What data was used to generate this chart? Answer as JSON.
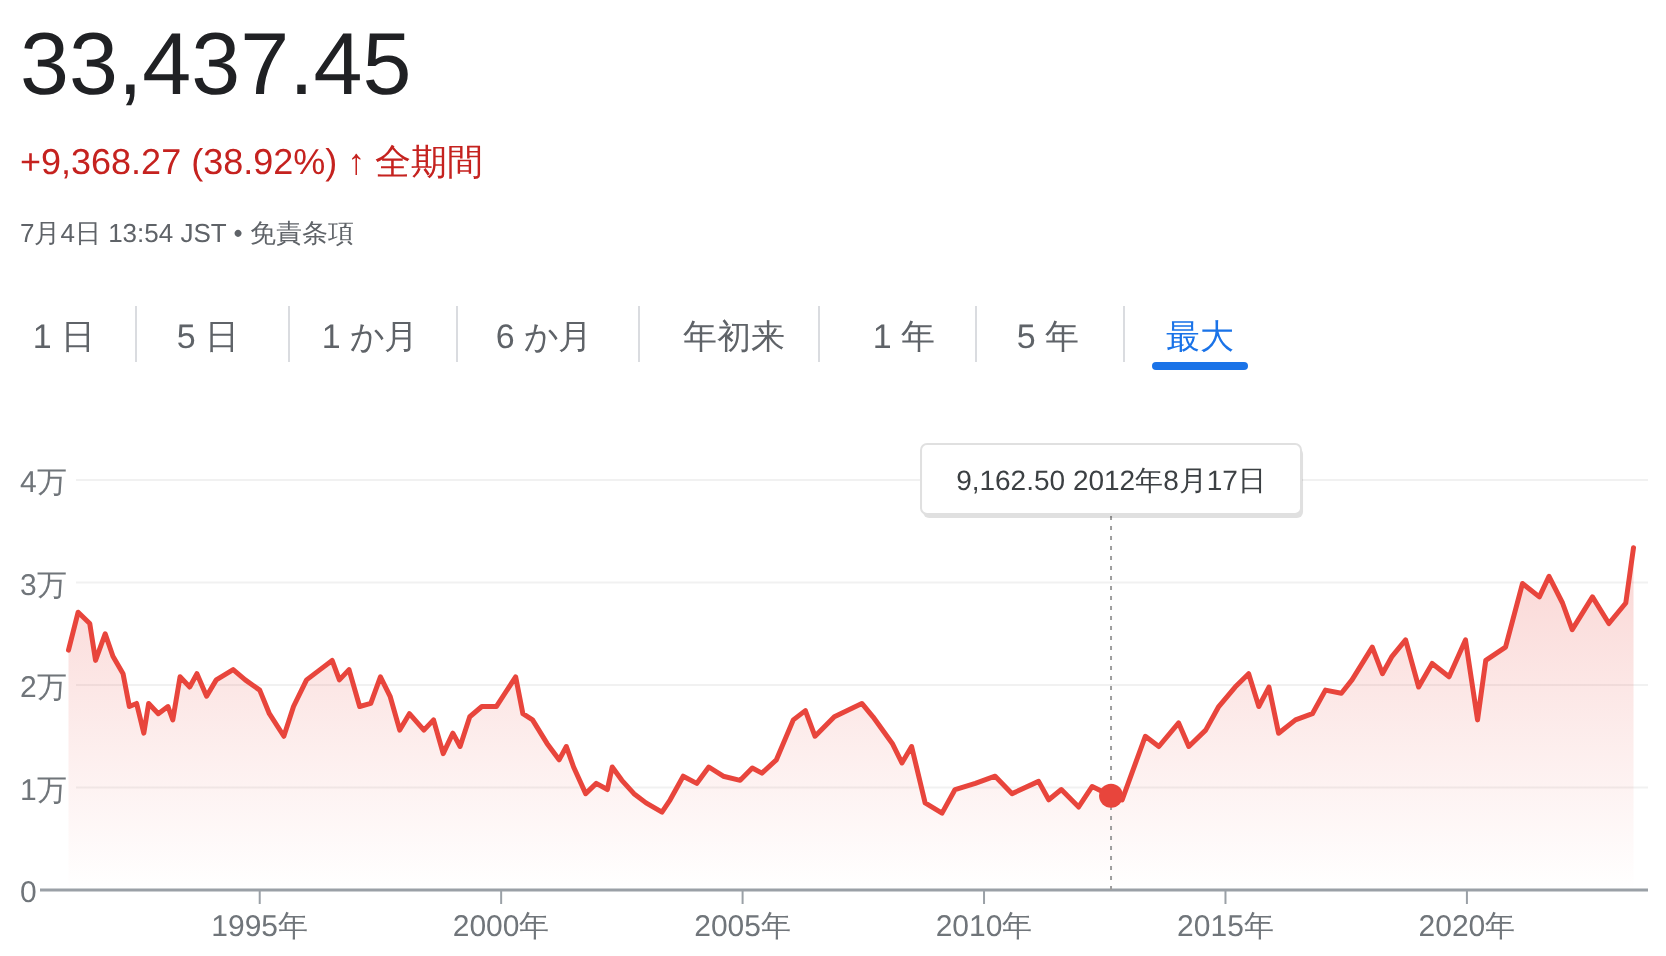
{
  "chart_data": {
    "type": "area",
    "title": "33,437.45",
    "subtitle": "+9,368.27 (38.92%) ↑ 全期間",
    "annotations": [
      "7月4日 13:54 JST • 免責条項",
      "1 日",
      "5 日",
      "1 か月",
      "6 か月",
      "年初来",
      "1 年",
      "5 年",
      "最大",
      "9,162.50  2012年8月17日"
    ],
    "xlim": [
      1990.45,
      2023.75
    ],
    "ylim": [
      0,
      4
    ],
    "xticks": [
      {
        "value": 1995,
        "label": "1995年"
      },
      {
        "value": 2000,
        "label": "2000年"
      },
      {
        "value": 2005,
        "label": "2005年"
      },
      {
        "value": 2010,
        "label": "2010年"
      },
      {
        "value": 2015,
        "label": "2015年"
      },
      {
        "value": 2020,
        "label": "2020年"
      }
    ],
    "yticks": [
      0,
      {
        "value": 1,
        "label": "1万"
      },
      {
        "value": 2,
        "label": "2万"
      },
      {
        "value": 3,
        "label": "3万"
      },
      {
        "value": 4,
        "label": "4万"
      }
    ],
    "grid": "y",
    "ref_lines": [
      {
        "axis": "x",
        "value": 2012.63,
        "color": "#9e9e9e",
        "line_style": "dotted"
      }
    ],
    "series": [
      {
        "color": "#e8453c",
        "x": [
          1991.04,
          1991.24,
          1991.48,
          1991.6,
          1991.8,
          1991.96,
          1992.17,
          1992.3,
          1992.45,
          1992.6,
          1992.7,
          1992.9,
          1993.1,
          1993.2,
          1993.35,
          1993.55,
          1993.7,
          1993.9,
          1994.1,
          1994.45,
          1994.7,
          1995.0,
          1995.2,
          1995.5,
          1995.7,
          1995.97,
          1996.25,
          1996.5,
          1996.65,
          1996.85,
          1997.07,
          1997.3,
          1997.5,
          1997.7,
          1997.9,
          1998.1,
          1998.4,
          1998.6,
          1998.8,
          1999.0,
          1999.15,
          1999.35,
          1999.6,
          1999.9,
          2000.3,
          2000.45,
          2000.65,
          2000.95,
          2001.2,
          2001.35,
          2001.5,
          2001.75,
          2001.97,
          2002.2,
          2002.3,
          2002.5,
          2002.75,
          2003.0,
          2003.33,
          2003.5,
          2003.77,
          2004.05,
          2004.3,
          2004.6,
          2004.95,
          2005.2,
          2005.4,
          2005.7,
          2006.05,
          2006.3,
          2006.5,
          2006.9,
          2007.47,
          2007.7,
          2008.1,
          2008.3,
          2008.5,
          2008.78,
          2009.13,
          2009.4,
          2009.82,
          2010.23,
          2010.58,
          2011.13,
          2011.34,
          2011.6,
          2011.96,
          2012.24,
          2012.63,
          2012.86,
          2013.34,
          2013.62,
          2014.03,
          2014.24,
          2014.59,
          2014.86,
          2015.2,
          2015.48,
          2015.69,
          2015.9,
          2016.1,
          2016.45,
          2016.8,
          2017.07,
          2017.4,
          2017.62,
          2018.04,
          2018.25,
          2018.45,
          2018.73,
          2019.0,
          2019.28,
          2019.63,
          2019.97,
          2020.22,
          2020.39,
          2020.8,
          2021.15,
          2021.5,
          2021.7,
          2021.98,
          2022.18,
          2022.6,
          2022.94,
          2023.29,
          2023.45
        ],
        "values": [
          2.34,
          2.71,
          2.6,
          2.24,
          2.5,
          2.28,
          2.11,
          1.79,
          1.82,
          1.53,
          1.82,
          1.72,
          1.79,
          1.66,
          2.08,
          1.98,
          2.11,
          1.89,
          2.05,
          2.15,
          2.05,
          1.95,
          1.72,
          1.5,
          1.79,
          2.05,
          2.15,
          2.24,
          2.05,
          2.15,
          1.79,
          1.82,
          2.08,
          1.89,
          1.56,
          1.72,
          1.56,
          1.66,
          1.33,
          1.53,
          1.4,
          1.69,
          1.79,
          1.79,
          2.08,
          1.72,
          1.66,
          1.43,
          1.27,
          1.4,
          1.2,
          0.94,
          1.04,
          0.98,
          1.2,
          1.07,
          0.94,
          0.85,
          0.76,
          0.88,
          1.11,
          1.04,
          1.2,
          1.11,
          1.07,
          1.19,
          1.14,
          1.27,
          1.66,
          1.75,
          1.5,
          1.69,
          1.82,
          1.69,
          1.43,
          1.24,
          1.4,
          0.85,
          0.75,
          0.98,
          1.04,
          1.11,
          0.94,
          1.06,
          0.88,
          0.98,
          0.81,
          1.01,
          0.92,
          0.88,
          1.5,
          1.4,
          1.63,
          1.4,
          1.56,
          1.79,
          1.98,
          2.11,
          1.79,
          1.98,
          1.53,
          1.66,
          1.72,
          1.95,
          1.92,
          2.05,
          2.37,
          2.11,
          2.28,
          2.44,
          1.98,
          2.21,
          2.08,
          2.44,
          1.66,
          2.24,
          2.37,
          2.99,
          2.86,
          3.06,
          2.8,
          2.54,
          2.86,
          2.6,
          2.8,
          3.34
        ]
      }
    ]
  }
}
